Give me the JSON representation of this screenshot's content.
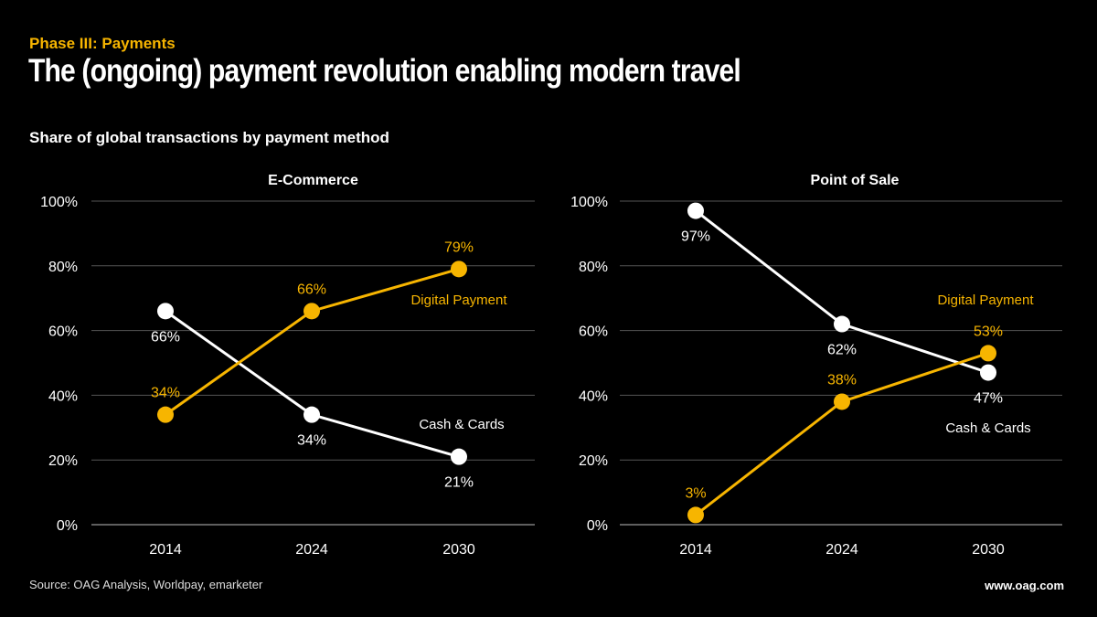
{
  "header": {
    "kicker": "Phase III: Payments",
    "title": "The (ongoing) payment revolution enabling modern travel",
    "subtitle": "Share of global transactions by payment method"
  },
  "footer": {
    "source": "Source: OAG Analysis, Worldpay, emarketer",
    "url": "www.oag.com"
  },
  "colors": {
    "digital": "#f7b500",
    "cash": "#ffffff",
    "grid": "#555555",
    "background": "#000000"
  },
  "chart_data": [
    {
      "type": "line",
      "title": "E-Commerce",
      "categories": [
        "2014",
        "2024",
        "2030"
      ],
      "ylim": [
        0,
        100
      ],
      "yticks": [
        "0%",
        "20%",
        "40%",
        "60%",
        "80%",
        "100%"
      ],
      "grid": true,
      "series": [
        {
          "name": "Digital Payment",
          "values": [
            34,
            66,
            79
          ],
          "labels": [
            "34%",
            "66%",
            "79%"
          ],
          "label_side": [
            "above",
            "above",
            "above"
          ]
        },
        {
          "name": "Cash & Cards",
          "values": [
            66,
            34,
            21
          ],
          "labels": [
            "66%",
            "34%",
            "21%"
          ],
          "label_side": [
            "below",
            "below",
            "below"
          ]
        }
      ]
    },
    {
      "type": "line",
      "title": "Point of Sale",
      "categories": [
        "2014",
        "2024",
        "2030"
      ],
      "ylim": [
        0,
        100
      ],
      "yticks": [
        "0%",
        "20%",
        "40%",
        "60%",
        "80%",
        "100%"
      ],
      "grid": true,
      "series": [
        {
          "name": "Digital Payment",
          "values": [
            3,
            38,
            53
          ],
          "labels": [
            "3%",
            "38%",
            "53%"
          ],
          "label_side": [
            "above",
            "above",
            "above"
          ]
        },
        {
          "name": "Cash & Cards",
          "values": [
            97,
            62,
            47
          ],
          "labels": [
            "97%",
            "62%",
            "47%"
          ],
          "label_side": [
            "below",
            "below",
            "below"
          ]
        }
      ]
    }
  ]
}
